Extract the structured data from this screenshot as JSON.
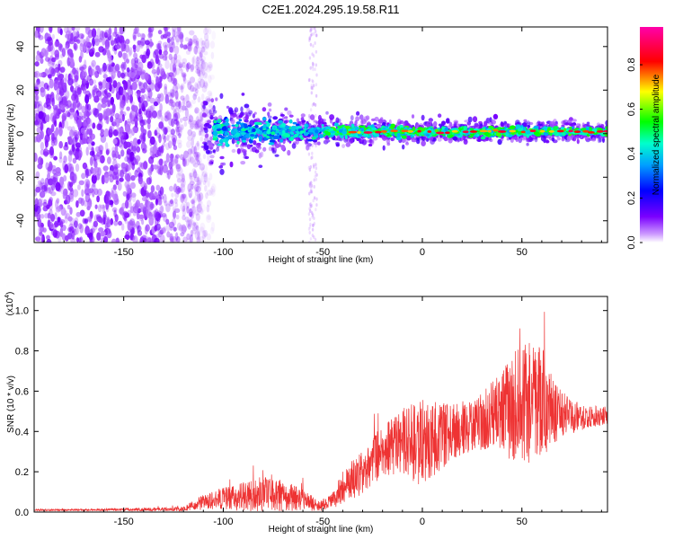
{
  "title": "C2E1.2024.295.19.58.R11",
  "chart_data": [
    {
      "type": "heatmap",
      "name": "spectrogram",
      "xlabel": "Height of straight line (km)",
      "ylabel": "Frequency (Hz)",
      "xlim": [
        -195,
        93
      ],
      "ylim": [
        -50,
        49
      ],
      "xticks": [
        -150,
        -100,
        -50,
        0,
        50
      ],
      "xtick_labels": [
        "-150",
        "-100",
        "-50",
        "0",
        "50"
      ],
      "yticks": [
        -40,
        -20,
        0,
        20,
        40
      ],
      "ytick_labels": [
        "-40",
        "-20",
        "0",
        "20",
        "40"
      ],
      "colorbar": {
        "label": "Normalized spectral amplitude",
        "range": [
          0,
          0.97
        ],
        "ticks": [
          0.0,
          0.2,
          0.4,
          0.6,
          0.8
        ],
        "tick_labels": [
          "0.0",
          "0.2",
          "0.4",
          "0.6",
          "0.8"
        ]
      },
      "features": {
        "noise_region_x": [
          -195,
          -110
        ],
        "signal_center_freq_hz": 1,
        "signal_band_x": [
          -110,
          93
        ],
        "band_halfwidth_hz": {
          "at_-100": 8,
          "at_-50": 3,
          "at_90": 2
        },
        "peak_amplitude_x": [
          -35,
          93
        ]
      }
    },
    {
      "type": "line",
      "name": "snr",
      "xlabel": "Height of straight line (km)",
      "ylabel": "SNR (10 * v/v)",
      "scale_label": "(x10",
      "scale_exp": "4",
      "scale_close": ")",
      "xlim": [
        -195,
        93
      ],
      "ylim": [
        0,
        1.07
      ],
      "xticks": [
        -150,
        -100,
        -50,
        0,
        50
      ],
      "xtick_labels": [
        "-150",
        "-100",
        "-50",
        "0",
        "50"
      ],
      "yticks": [
        0.0,
        0.2,
        0.4,
        0.6,
        0.8,
        1.0
      ],
      "ytick_labels": [
        "0.0",
        "0.2",
        "0.4",
        "0.6",
        "0.8",
        "1.0"
      ],
      "color": "#ee3333",
      "envelope": {
        "x": [
          -195,
          -150,
          -120,
          -110,
          -95,
          -80,
          -70,
          -60,
          -52,
          -46,
          -40,
          -30,
          -20,
          -10,
          0,
          10,
          20,
          30,
          40,
          50,
          60,
          70,
          80,
          93
        ],
        "mean": [
          0.01,
          0.012,
          0.015,
          0.05,
          0.07,
          0.09,
          0.08,
          0.06,
          0.03,
          0.05,
          0.12,
          0.2,
          0.3,
          0.35,
          0.34,
          0.38,
          0.42,
          0.45,
          0.5,
          0.52,
          0.55,
          0.48,
          0.47,
          0.48
        ],
        "spread": [
          0.004,
          0.005,
          0.01,
          0.035,
          0.06,
          0.08,
          0.07,
          0.05,
          0.025,
          0.03,
          0.08,
          0.1,
          0.12,
          0.15,
          0.2,
          0.15,
          0.12,
          0.13,
          0.18,
          0.3,
          0.25,
          0.1,
          0.06,
          0.04
        ]
      }
    }
  ]
}
